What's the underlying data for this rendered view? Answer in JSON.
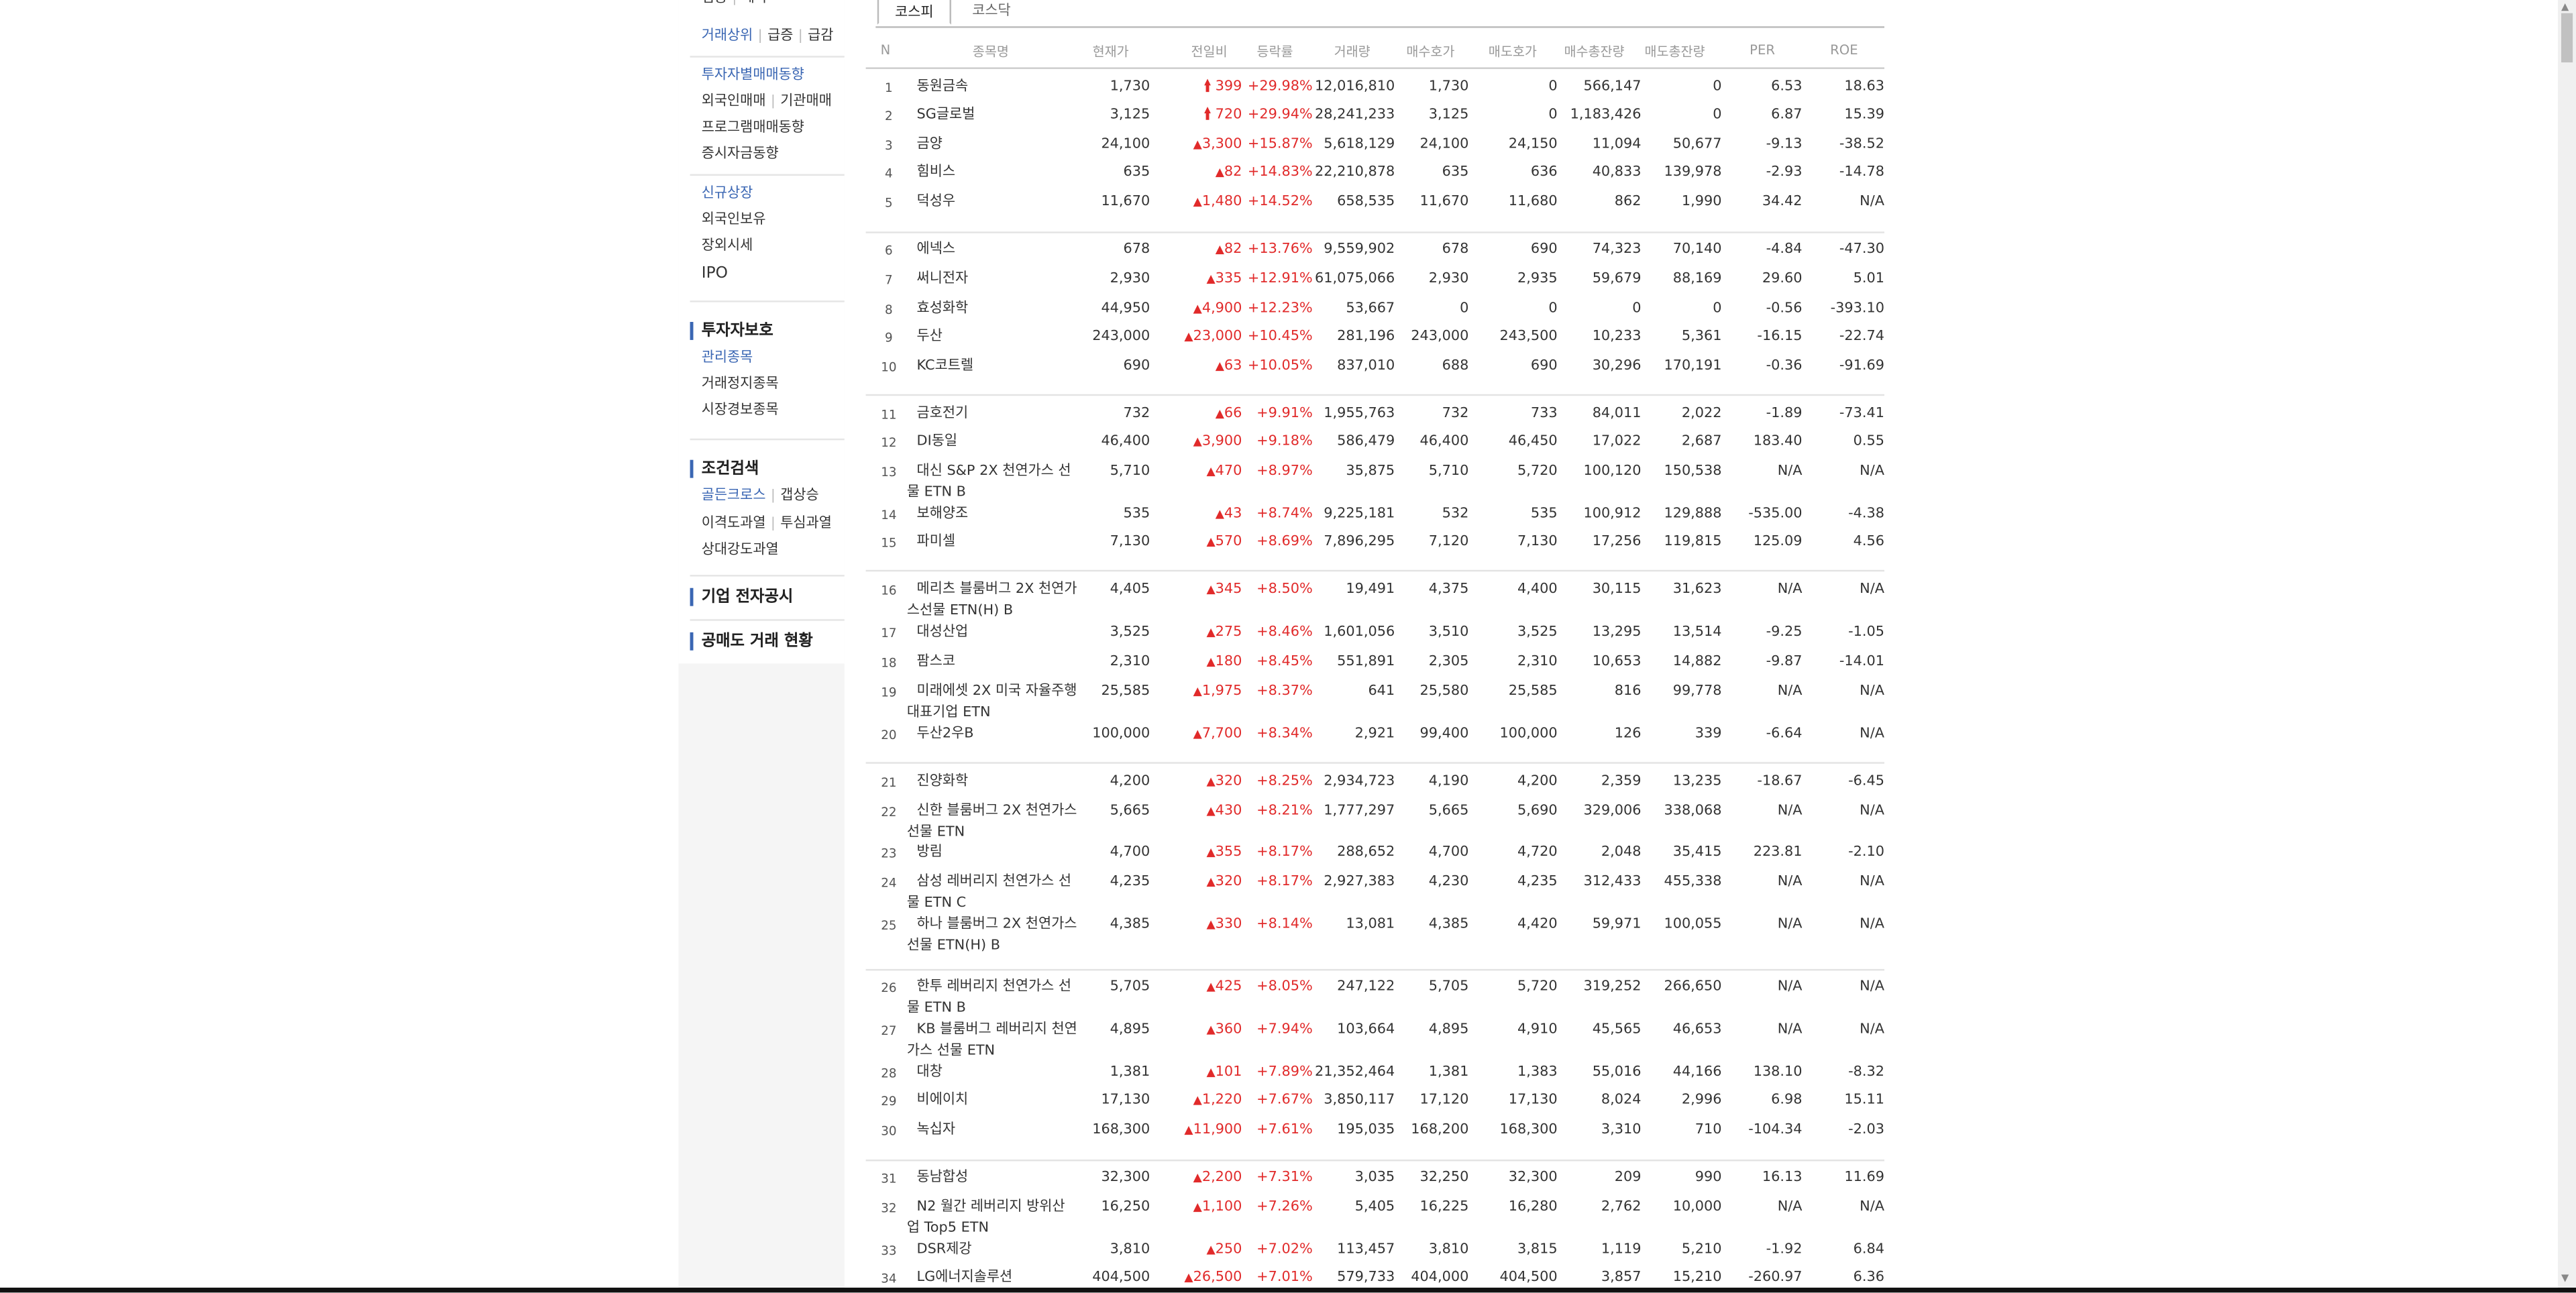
{
  "sidebar": {
    "top_partial": [
      "업종",
      "테마"
    ],
    "rank_links": [
      "거래상위",
      "급증",
      "급감"
    ],
    "investor_links": [
      "투자자별매매동향"
    ],
    "foreign_links": [
      "외국인매매",
      "기관매매"
    ],
    "program_links": [
      "프로그램매매동향"
    ],
    "deposit_links": [
      "증시자금동향"
    ],
    "new_listing": "신규상장",
    "foreign_holding": "외국인보유",
    "off_market": "장외시세",
    "ipo": "IPO",
    "protection_heading": "투자자보호",
    "managed": "관리종목",
    "halted": "거래정지종목",
    "warning": "시장경보종목",
    "condition_heading": "조건검색",
    "golden_cross": "골든크로스",
    "gap_up": "갭상승",
    "disparity_over": "이격도과열",
    "psych_over": "투심과열",
    "relative_strength": "상대강도과열",
    "disclosure_heading": "기업 전자공시",
    "short_heading": "공매도 거래 현황"
  },
  "tabs": [
    "코스피",
    "코스닥"
  ],
  "columns": [
    "N",
    "종목명",
    "현재가",
    "전일비",
    "등락률",
    "거래량",
    "매수호가",
    "매도호가",
    "매수총잔량",
    "매도총잔량",
    "PER",
    "ROE"
  ],
  "rows": [
    {
      "n": "1",
      "name": "동원금속",
      "price": "1,730",
      "change": "399",
      "limit": true,
      "rate": "+29.98%",
      "volume": "12,016,810",
      "bid": "1,730",
      "ask": "0",
      "bid_total": "566,147",
      "ask_total": "0",
      "per": "6.53",
      "roe": "18.63"
    },
    {
      "n": "2",
      "name": "SG글로벌",
      "price": "3,125",
      "change": "720",
      "limit": true,
      "rate": "+29.94%",
      "volume": "28,241,233",
      "bid": "3,125",
      "ask": "0",
      "bid_total": "1,183,426",
      "ask_total": "0",
      "per": "6.87",
      "roe": "15.39"
    },
    {
      "n": "3",
      "name": "금양",
      "price": "24,100",
      "change": "3,300",
      "limit": false,
      "rate": "+15.87%",
      "volume": "5,618,129",
      "bid": "24,100",
      "ask": "24,150",
      "bid_total": "11,094",
      "ask_total": "50,677",
      "per": "-9.13",
      "roe": "-38.52"
    },
    {
      "n": "4",
      "name": "힘비스",
      "price": "635",
      "change": "82",
      "limit": false,
      "rate": "+14.83%",
      "volume": "22,210,878",
      "bid": "635",
      "ask": "636",
      "bid_total": "40,833",
      "ask_total": "139,978",
      "per": "-2.93",
      "roe": "-14.78"
    },
    {
      "n": "5",
      "name": "덕성우",
      "price": "11,670",
      "change": "1,480",
      "limit": false,
      "rate": "+14.52%",
      "volume": "658,535",
      "bid": "11,670",
      "ask": "11,680",
      "bid_total": "862",
      "ask_total": "1,990",
      "per": "34.42",
      "roe": "N/A"
    },
    {
      "n": "6",
      "name": "에넥스",
      "price": "678",
      "change": "82",
      "limit": false,
      "rate": "+13.76%",
      "volume": "9,559,902",
      "bid": "678",
      "ask": "690",
      "bid_total": "74,323",
      "ask_total": "70,140",
      "per": "-4.84",
      "roe": "-47.30"
    },
    {
      "n": "7",
      "name": "써니전자",
      "price": "2,930",
      "change": "335",
      "limit": false,
      "rate": "+12.91%",
      "volume": "61,075,066",
      "bid": "2,930",
      "ask": "2,935",
      "bid_total": "59,679",
      "ask_total": "88,169",
      "per": "29.60",
      "roe": "5.01"
    },
    {
      "n": "8",
      "name": "효성화학",
      "price": "44,950",
      "change": "4,900",
      "limit": false,
      "rate": "+12.23%",
      "volume": "53,667",
      "bid": "0",
      "ask": "0",
      "bid_total": "0",
      "ask_total": "0",
      "per": "-0.56",
      "roe": "-393.10"
    },
    {
      "n": "9",
      "name": "두산",
      "price": "243,000",
      "change": "23,000",
      "limit": false,
      "rate": "+10.45%",
      "volume": "281,196",
      "bid": "243,000",
      "ask": "243,500",
      "bid_total": "10,233",
      "ask_total": "5,361",
      "per": "-16.15",
      "roe": "-22.74"
    },
    {
      "n": "10",
      "name": "KC코트렐",
      "price": "690",
      "change": "63",
      "limit": false,
      "rate": "+10.05%",
      "volume": "837,010",
      "bid": "688",
      "ask": "690",
      "bid_total": "30,296",
      "ask_total": "170,191",
      "per": "-0.36",
      "roe": "-91.69"
    },
    {
      "n": "11",
      "name": "금호전기",
      "price": "732",
      "change": "66",
      "limit": false,
      "rate": "+9.91%",
      "volume": "1,955,763",
      "bid": "732",
      "ask": "733",
      "bid_total": "84,011",
      "ask_total": "2,022",
      "per": "-1.89",
      "roe": "-73.41"
    },
    {
      "n": "12",
      "name": "DI동일",
      "price": "46,400",
      "change": "3,900",
      "limit": false,
      "rate": "+9.18%",
      "volume": "586,479",
      "bid": "46,400",
      "ask": "46,450",
      "bid_total": "17,022",
      "ask_total": "2,687",
      "per": "183.40",
      "roe": "0.55"
    },
    {
      "n": "13",
      "name": "대신 S&P 2X 천연가스 선물 ETN B",
      "price": "5,710",
      "change": "470",
      "limit": false,
      "rate": "+8.97%",
      "volume": "35,875",
      "bid": "5,710",
      "ask": "5,720",
      "bid_total": "100,120",
      "ask_total": "150,538",
      "per": "N/A",
      "roe": "N/A"
    },
    {
      "n": "14",
      "name": "보해양조",
      "price": "535",
      "change": "43",
      "limit": false,
      "rate": "+8.74%",
      "volume": "9,225,181",
      "bid": "532",
      "ask": "535",
      "bid_total": "100,912",
      "ask_total": "129,888",
      "per": "-535.00",
      "roe": "-4.38"
    },
    {
      "n": "15",
      "name": "파미셀",
      "price": "7,130",
      "change": "570",
      "limit": false,
      "rate": "+8.69%",
      "volume": "7,896,295",
      "bid": "7,120",
      "ask": "7,130",
      "bid_total": "17,256",
      "ask_total": "119,815",
      "per": "125.09",
      "roe": "4.56"
    },
    {
      "n": "16",
      "name": "메리츠 블룸버그 2X 천연가스선물 ETN(H) B",
      "price": "4,405",
      "change": "345",
      "limit": false,
      "rate": "+8.50%",
      "volume": "19,491",
      "bid": "4,375",
      "ask": "4,400",
      "bid_total": "30,115",
      "ask_total": "31,623",
      "per": "N/A",
      "roe": "N/A"
    },
    {
      "n": "17",
      "name": "대성산업",
      "price": "3,525",
      "change": "275",
      "limit": false,
      "rate": "+8.46%",
      "volume": "1,601,056",
      "bid": "3,510",
      "ask": "3,525",
      "bid_total": "13,295",
      "ask_total": "13,514",
      "per": "-9.25",
      "roe": "-1.05"
    },
    {
      "n": "18",
      "name": "팜스코",
      "price": "2,310",
      "change": "180",
      "limit": false,
      "rate": "+8.45%",
      "volume": "551,891",
      "bid": "2,305",
      "ask": "2,310",
      "bid_total": "10,653",
      "ask_total": "14,882",
      "per": "-9.87",
      "roe": "-14.01"
    },
    {
      "n": "19",
      "name": "미래에셋 2X 미국 자율주행대표기업 ETN",
      "price": "25,585",
      "change": "1,975",
      "limit": false,
      "rate": "+8.37%",
      "volume": "641",
      "bid": "25,580",
      "ask": "25,585",
      "bid_total": "816",
      "ask_total": "99,778",
      "per": "N/A",
      "roe": "N/A"
    },
    {
      "n": "20",
      "name": "두산2우B",
      "price": "100,000",
      "change": "7,700",
      "limit": false,
      "rate": "+8.34%",
      "volume": "2,921",
      "bid": "99,400",
      "ask": "100,000",
      "bid_total": "126",
      "ask_total": "339",
      "per": "-6.64",
      "roe": "N/A"
    },
    {
      "n": "21",
      "name": "진양화학",
      "price": "4,200",
      "change": "320",
      "limit": false,
      "rate": "+8.25%",
      "volume": "2,934,723",
      "bid": "4,190",
      "ask": "4,200",
      "bid_total": "2,359",
      "ask_total": "13,235",
      "per": "-18.67",
      "roe": "-6.45"
    },
    {
      "n": "22",
      "name": "신한 블룸버그 2X 천연가스 선물 ETN",
      "price": "5,665",
      "change": "430",
      "limit": false,
      "rate": "+8.21%",
      "volume": "1,777,297",
      "bid": "5,665",
      "ask": "5,690",
      "bid_total": "329,006",
      "ask_total": "338,068",
      "per": "N/A",
      "roe": "N/A"
    },
    {
      "n": "23",
      "name": "방림",
      "price": "4,700",
      "change": "355",
      "limit": false,
      "rate": "+8.17%",
      "volume": "288,652",
      "bid": "4,700",
      "ask": "4,720",
      "bid_total": "2,048",
      "ask_total": "35,415",
      "per": "223.81",
      "roe": "-2.10"
    },
    {
      "n": "24",
      "name": "삼성 레버리지 천연가스 선물 ETN C",
      "price": "4,235",
      "change": "320",
      "limit": false,
      "rate": "+8.17%",
      "volume": "2,927,383",
      "bid": "4,230",
      "ask": "4,235",
      "bid_total": "312,433",
      "ask_total": "455,338",
      "per": "N/A",
      "roe": "N/A"
    },
    {
      "n": "25",
      "name": "하나 블룸버그 2X 천연가스 선물 ETN(H) B",
      "price": "4,385",
      "change": "330",
      "limit": false,
      "rate": "+8.14%",
      "volume": "13,081",
      "bid": "4,385",
      "ask": "4,420",
      "bid_total": "59,971",
      "ask_total": "100,055",
      "per": "N/A",
      "roe": "N/A"
    },
    {
      "n": "26",
      "name": "한투 레버리지 천연가스 선물 ETN B",
      "price": "5,705",
      "change": "425",
      "limit": false,
      "rate": "+8.05%",
      "volume": "247,122",
      "bid": "5,705",
      "ask": "5,720",
      "bid_total": "319,252",
      "ask_total": "266,650",
      "per": "N/A",
      "roe": "N/A"
    },
    {
      "n": "27",
      "name": "KB 블룸버그 레버리지 천연가스 선물 ETN",
      "price": "4,895",
      "change": "360",
      "limit": false,
      "rate": "+7.94%",
      "volume": "103,664",
      "bid": "4,895",
      "ask": "4,910",
      "bid_total": "45,565",
      "ask_total": "46,653",
      "per": "N/A",
      "roe": "N/A"
    },
    {
      "n": "28",
      "name": "대창",
      "price": "1,381",
      "change": "101",
      "limit": false,
      "rate": "+7.89%",
      "volume": "21,352,464",
      "bid": "1,381",
      "ask": "1,383",
      "bid_total": "55,016",
      "ask_total": "44,166",
      "per": "138.10",
      "roe": "-8.32"
    },
    {
      "n": "29",
      "name": "비에이치",
      "price": "17,130",
      "change": "1,220",
      "limit": false,
      "rate": "+7.67%",
      "volume": "3,850,117",
      "bid": "17,120",
      "ask": "17,130",
      "bid_total": "8,024",
      "ask_total": "2,996",
      "per": "6.98",
      "roe": "15.11"
    },
    {
      "n": "30",
      "name": "녹십자",
      "price": "168,300",
      "change": "11,900",
      "limit": false,
      "rate": "+7.61%",
      "volume": "195,035",
      "bid": "168,200",
      "ask": "168,300",
      "bid_total": "3,310",
      "ask_total": "710",
      "per": "-104.34",
      "roe": "-2.03"
    },
    {
      "n": "31",
      "name": "동남합성",
      "price": "32,300",
      "change": "2,200",
      "limit": false,
      "rate": "+7.31%",
      "volume": "3,035",
      "bid": "32,250",
      "ask": "32,300",
      "bid_total": "209",
      "ask_total": "990",
      "per": "16.13",
      "roe": "11.69"
    },
    {
      "n": "32",
      "name": "N2 월간 레버리지 방위산업 Top5 ETN",
      "price": "16,250",
      "change": "1,100",
      "limit": false,
      "rate": "+7.26%",
      "volume": "5,405",
      "bid": "16,225",
      "ask": "16,280",
      "bid_total": "2,762",
      "ask_total": "10,000",
      "per": "N/A",
      "roe": "N/A"
    },
    {
      "n": "33",
      "name": "DSR제강",
      "price": "3,810",
      "change": "250",
      "limit": false,
      "rate": "+7.02%",
      "volume": "113,457",
      "bid": "3,810",
      "ask": "3,815",
      "bid_total": "1,119",
      "ask_total": "5,210",
      "per": "-1.92",
      "roe": "6.84"
    },
    {
      "n": "34",
      "name": "LG에너지솔루션",
      "price": "404,500",
      "change": "26,500",
      "limit": false,
      "rate": "+7.01%",
      "volume": "579,733",
      "bid": "404,000",
      "ask": "404,500",
      "bid_total": "3,857",
      "ask_total": "15,210",
      "per": "-260.97",
      "roe": "6.36"
    }
  ],
  "colors": {
    "up": "#e12a2a",
    "accent": "#3a66b3"
  },
  "icons": {
    "limit_up": "limit-up-arrow-icon",
    "rise": "up-triangle-icon"
  }
}
